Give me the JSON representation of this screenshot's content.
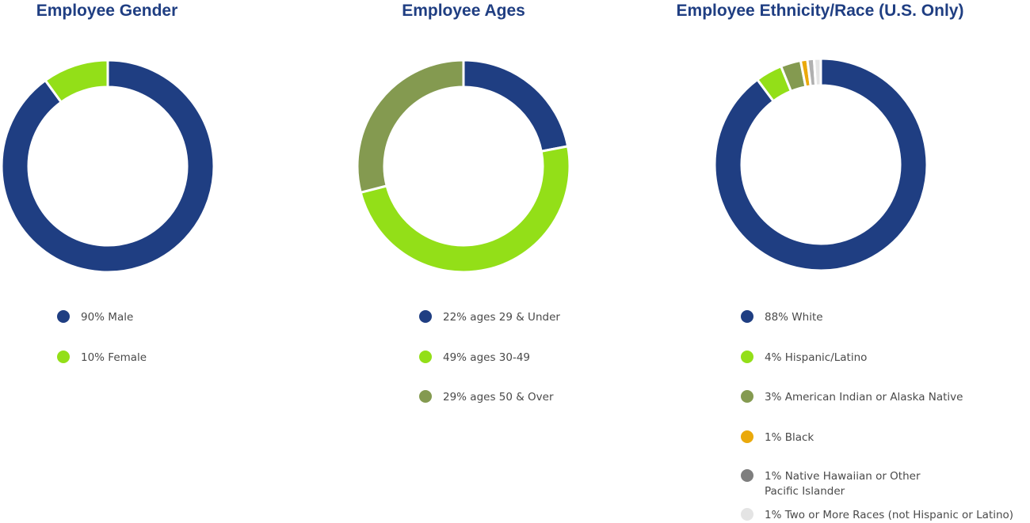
{
  "charts": [
    {
      "title": "Employee Gender",
      "legend": [
        {
          "label": "90% Male",
          "color": "#1f3e82"
        },
        {
          "label": "10% Female",
          "color": "#93df18"
        }
      ]
    },
    {
      "title": "Employee Ages",
      "legend": [
        {
          "label": "22% ages 29 & Under",
          "color": "#1f3e82"
        },
        {
          "label": "49% ages 30-49",
          "color": "#93df18"
        },
        {
          "label": "29% ages 50 & Over",
          "color": "#849a50"
        }
      ]
    },
    {
      "title": "Employee Ethnicity/Race (U.S. Only)",
      "legend": [
        {
          "label": "88% White",
          "color": "#1f3e82"
        },
        {
          "label": "4% Hispanic/Latino",
          "color": "#93df18"
        },
        {
          "label": "3% American Indian or Alaska Native",
          "color": "#849a50"
        },
        {
          "label": "1% Black",
          "color": "#eaa90b"
        },
        {
          "label": "1% Native Hawaiian or Other\nPacific Islander",
          "color": "#7e7e7e"
        },
        {
          "label": "1% Two or More Races (not Hispanic or Latino)",
          "color": "#e4e4e4"
        }
      ]
    }
  ],
  "chart_data": [
    {
      "type": "pie",
      "title": "Employee Gender",
      "categories": [
        "Male",
        "Female"
      ],
      "values": [
        90,
        10
      ],
      "colors": [
        "#1f3e82",
        "#93df18"
      ],
      "unit": "%",
      "legend": "bottom"
    },
    {
      "type": "pie",
      "title": "Employee Ages",
      "categories": [
        "ages 29 & Under",
        "ages 30-49",
        "ages 50 & Over"
      ],
      "values": [
        22,
        49,
        29
      ],
      "colors": [
        "#1f3e82",
        "#93df18",
        "#849a50"
      ],
      "unit": "%",
      "legend": "bottom"
    },
    {
      "type": "pie",
      "title": "Employee Ethnicity/Race (U.S. Only)",
      "categories": [
        "White",
        "Hispanic/Latino",
        "American Indian or Alaska Native",
        "Black",
        "Native Hawaiian or Other Pacific Islander",
        "Two or More Races (not Hispanic or Latino)"
      ],
      "values": [
        88,
        4,
        3,
        1,
        1,
        1
      ],
      "colors": [
        "#1f3e82",
        "#93df18",
        "#849a50",
        "#eaa90b",
        "#b0b0b0",
        "#e4e4e4"
      ],
      "unit": "%",
      "legend": "bottom"
    }
  ]
}
